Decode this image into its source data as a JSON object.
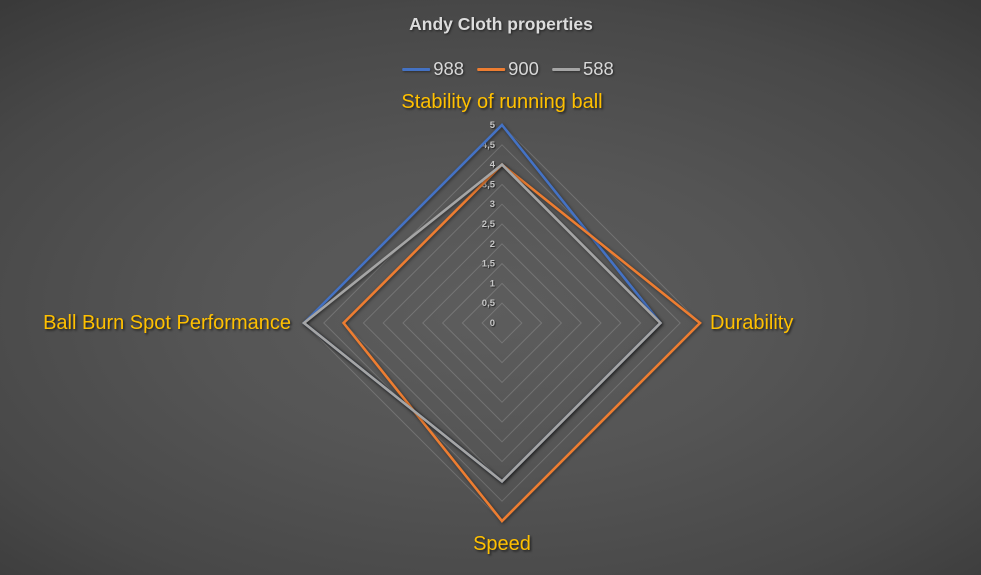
{
  "slide": {
    "background_center_color": "#5d5d5d",
    "background_edge_color": "#1f1f1f"
  },
  "chart_data": {
    "type": "radar",
    "title": "Andy Cloth properties",
    "title_color": "#dcdcdc",
    "axis_label_color": "#FFC000",
    "legend_position": "top",
    "legend_text_color": "#d8d8d8",
    "grid": true,
    "gridline_color": "rgba(255,255,255,0.16)",
    "axes": [
      "Stability of running ball",
      "Durability",
      "Speed",
      "Ball Burn Spot Performance"
    ],
    "series": [
      {
        "name": "988",
        "color": "#4472C4",
        "values": [
          5,
          4,
          4,
          5
        ]
      },
      {
        "name": "900",
        "color": "#ED7D31",
        "values": [
          4,
          5,
          5,
          4
        ]
      },
      {
        "name": "588",
        "color": "#A5A5A5",
        "values": [
          4,
          4,
          4,
          5
        ]
      }
    ],
    "scale": {
      "min": 0,
      "max": 5,
      "step": 0.5,
      "tick_labels": [
        "0",
        "0,5",
        "1",
        "1,5",
        "2",
        "2,5",
        "3",
        "3,5",
        "4",
        "4,5",
        "5"
      ],
      "tick_color": "#c6c6c6"
    }
  }
}
